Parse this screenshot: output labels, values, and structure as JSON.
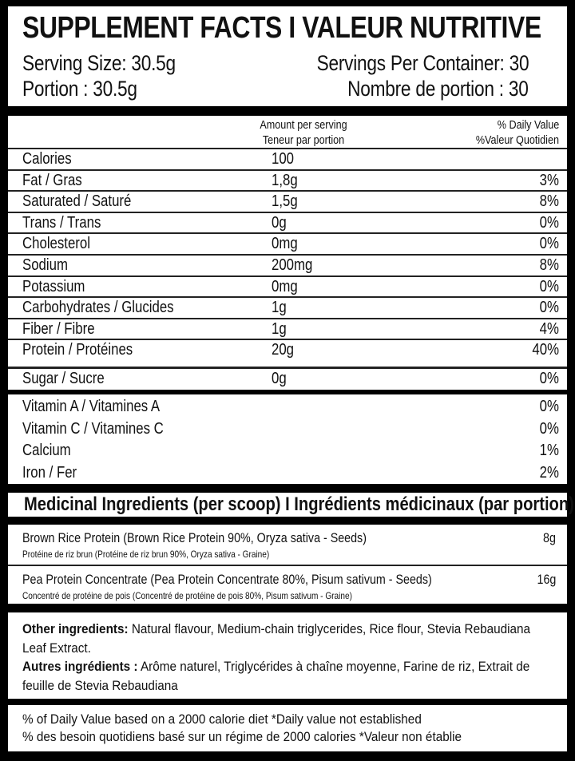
{
  "title": "SUPPLEMENT FACTS I VALEUR NUTRITIVE",
  "serving": {
    "size_en": "Serving Size: 30.5g",
    "size_fr": "Portion : 30.5g",
    "per_container_en": "Servings Per Container: 30",
    "per_container_fr": "Nombre de portion : 30"
  },
  "header": {
    "amount_en": "Amount per serving",
    "amount_fr": "Teneur par portion",
    "dv_en": "% Daily Value",
    "dv_fr": "%Valeur Quotidien"
  },
  "nutrients": [
    {
      "name": "Calories",
      "amount": "100",
      "dv": ""
    },
    {
      "name": "Fat / Gras",
      "amount": "1,8g",
      "dv": "3%"
    },
    {
      "name": "Saturated / Saturé",
      "amount": "1,5g",
      "dv": "8%"
    },
    {
      "name": "Trans / Trans",
      "amount": "0g",
      "dv": "0%"
    },
    {
      "name": "Cholesterol",
      "amount": "0mg",
      "dv": "0%"
    },
    {
      "name": "Sodium",
      "amount": "200mg",
      "dv": "8%"
    },
    {
      "name": "Potassium",
      "amount": "0mg",
      "dv": "0%"
    },
    {
      "name": "Carbohydrates / Glucides",
      "amount": "1g",
      "dv": "0%"
    },
    {
      "name": "Fiber / Fibre",
      "amount": "1g",
      "dv": "4%"
    },
    {
      "name": "Protein / Protéines",
      "amount": "20g",
      "dv": "40%"
    },
    {
      "name": "Sugar / Sucre",
      "amount": "0g",
      "dv": "0%"
    }
  ],
  "vitamins": [
    {
      "name": "Vitamin A / Vitamines A",
      "dv": "0%"
    },
    {
      "name": "Vitamin C / Vitamines C",
      "dv": "0%"
    },
    {
      "name": "Calcium",
      "dv": "1%"
    },
    {
      "name": "Iron / Fer",
      "dv": "2%"
    }
  ],
  "medicinal": {
    "heading": "Medicinal Ingredients (per scoop) I Ingrédients médicinaux (par portion) :",
    "items": [
      {
        "name": "Brown Rice Protein",
        "detail": " (Brown Rice Protein 90%, Oryza sativa - Seeds)",
        "fr": "Protéine de riz brun  (Protéine de riz brun 90%, Oryza sativa - Graine)",
        "amount": "8g"
      },
      {
        "name": "Pea Protein Concentrate",
        "detail": " (Pea Protein Concentrate 80%, Pisum sativum - Seeds)",
        "fr": "Concentré de protéine de pois (Concentré de protéine de pois 80%, Pisum sativum - Graine)",
        "amount": "16g"
      }
    ]
  },
  "other": {
    "label_en": "Other ingredients:",
    "text_en": " Natural flavour, Medium-chain triglycerides, Rice flour, Stevia Rebaudiana Leaf Extract.",
    "label_fr": "Autres ingrédients  :",
    "text_fr": " Arôme naturel, Triglycérides à chaîne moyenne, Farine de riz, Extrait de feuille de Stevia Rebaudiana"
  },
  "footer": {
    "line_en": "% of Daily Value based on a 2000 calorie diet   *Daily value not established",
    "line_fr": "% des besoin quotidiens basé sur un régime de 2000 calories   *Valeur non établie"
  }
}
